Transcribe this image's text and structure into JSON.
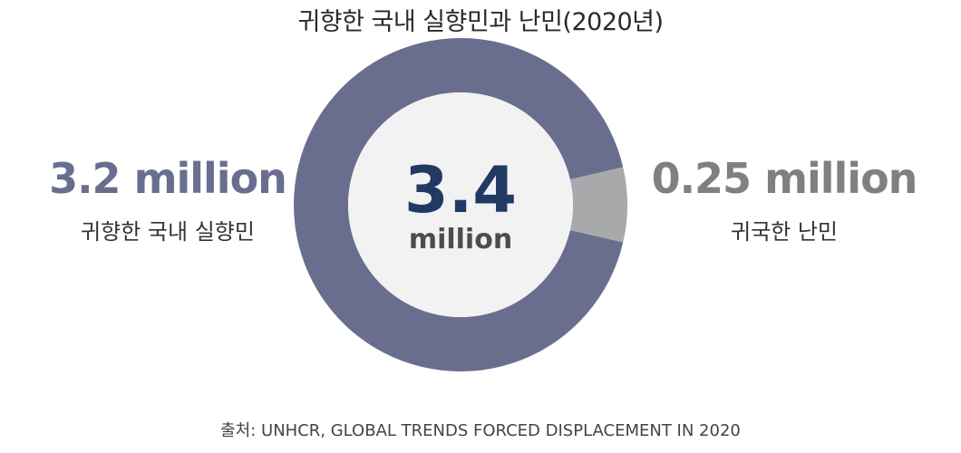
{
  "chart_data": {
    "type": "pie",
    "title": "귀향한 국내 실향민과 난민(2020년)",
    "center": {
      "value": "3.4",
      "unit": "million"
    },
    "slices": [
      {
        "label": "귀향한 국내 실향민",
        "value": 3.2,
        "display": "3.2 million",
        "color": "#6a6e8e"
      },
      {
        "label": "귀국한 난민",
        "value": 0.25,
        "display": "0.25 million",
        "color": "#a8a9ab"
      }
    ],
    "inner_fill": "#f2f2f2",
    "source": "출처: UNHCR, GLOBAL TRENDS FORCED DISPLACEMENT IN 2020"
  }
}
